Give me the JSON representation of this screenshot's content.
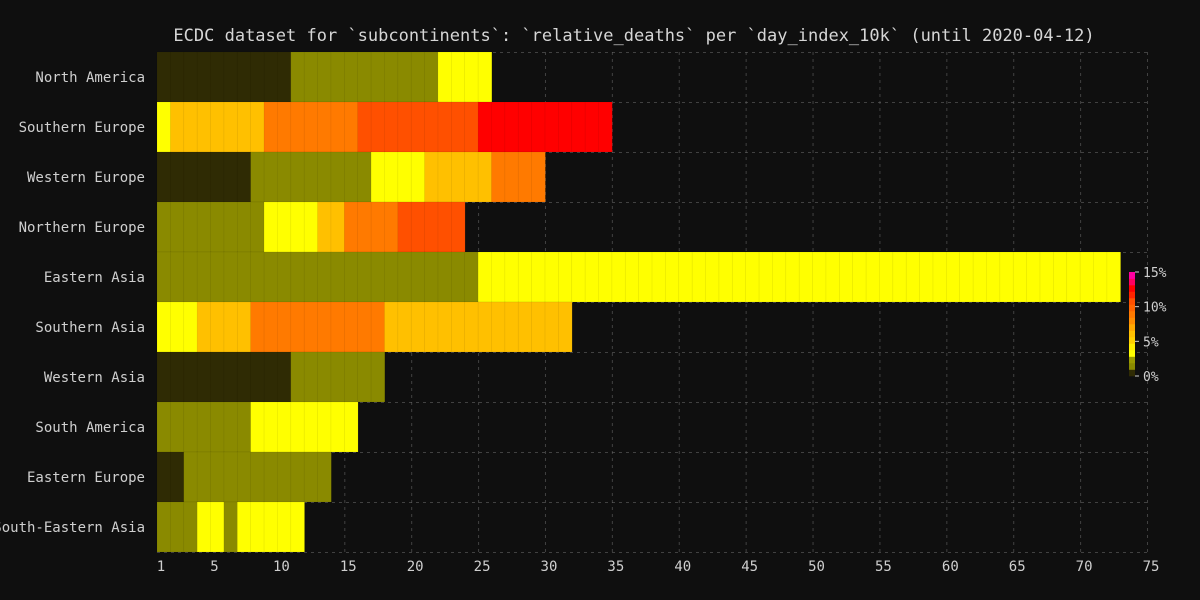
{
  "chart_data": {
    "type": "heatmap",
    "title": "ECDC dataset for `subcontinents`: `relative_deaths` per `day_index_10k` (until 2020-04-12)",
    "x_ticks": [
      1,
      5,
      10,
      15,
      20,
      25,
      30,
      35,
      40,
      45,
      50,
      55,
      60,
      65,
      70,
      75
    ],
    "x_range": [
      1,
      75
    ],
    "grid": true,
    "colorbar": {
      "labels": [
        "15%",
        "10%",
        "5%",
        "0%"
      ],
      "levels": [
        0,
        1,
        2,
        3,
        4,
        5,
        6,
        7,
        8,
        9,
        10,
        11,
        12,
        13,
        14,
        15
      ],
      "colors": [
        "#2f2b04",
        "#8a8a00",
        "#9a9a00",
        "#ffff00",
        "#ffee00",
        "#ffd000",
        "#ffc000",
        "#ffa800",
        "#ff8c00",
        "#ff7a00",
        "#ff6400",
        "#ff5000",
        "#ff2400",
        "#ff0000",
        "#ff0060",
        "#ff00a0"
      ]
    },
    "rows": [
      {
        "name": "North America",
        "segments": [
          {
            "start": 1,
            "end": 10,
            "level": 0
          },
          {
            "start": 11,
            "end": 21,
            "level": 1
          },
          {
            "start": 22,
            "end": 25,
            "level": 3
          }
        ]
      },
      {
        "name": "Southern Europe",
        "segments": [
          {
            "start": 1,
            "end": 1,
            "level": 3
          },
          {
            "start": 2,
            "end": 8,
            "level": 6
          },
          {
            "start": 9,
            "end": 15,
            "level": 9
          },
          {
            "start": 16,
            "end": 24,
            "level": 11
          },
          {
            "start": 25,
            "end": 34,
            "level": 13
          }
        ]
      },
      {
        "name": "Western Europe",
        "segments": [
          {
            "start": 1,
            "end": 7,
            "level": 0
          },
          {
            "start": 8,
            "end": 16,
            "level": 1
          },
          {
            "start": 17,
            "end": 20,
            "level": 3
          },
          {
            "start": 21,
            "end": 25,
            "level": 6
          },
          {
            "start": 26,
            "end": 29,
            "level": 9
          }
        ]
      },
      {
        "name": "Northern Europe",
        "segments": [
          {
            "start": 1,
            "end": 8,
            "level": 1
          },
          {
            "start": 9,
            "end": 12,
            "level": 3
          },
          {
            "start": 13,
            "end": 14,
            "level": 6
          },
          {
            "start": 15,
            "end": 18,
            "level": 9
          },
          {
            "start": 19,
            "end": 23,
            "level": 11
          }
        ]
      },
      {
        "name": "Eastern Asia",
        "segments": [
          {
            "start": 1,
            "end": 24,
            "level": 1
          },
          {
            "start": 25,
            "end": 72,
            "level": 3
          }
        ]
      },
      {
        "name": "Southern Asia",
        "segments": [
          {
            "start": 1,
            "end": 3,
            "level": 3
          },
          {
            "start": 4,
            "end": 7,
            "level": 6
          },
          {
            "start": 8,
            "end": 17,
            "level": 9
          },
          {
            "start": 18,
            "end": 31,
            "level": 6
          }
        ]
      },
      {
        "name": "Western Asia",
        "segments": [
          {
            "start": 1,
            "end": 10,
            "level": 0
          },
          {
            "start": 11,
            "end": 17,
            "level": 1
          }
        ]
      },
      {
        "name": "South America",
        "segments": [
          {
            "start": 1,
            "end": 7,
            "level": 1
          },
          {
            "start": 8,
            "end": 15,
            "level": 3
          }
        ]
      },
      {
        "name": "Eastern Europe",
        "segments": [
          {
            "start": 1,
            "end": 2,
            "level": 0
          },
          {
            "start": 3,
            "end": 13,
            "level": 1
          }
        ]
      },
      {
        "name": "South-Eastern Asia",
        "segments": [
          {
            "start": 1,
            "end": 3,
            "level": 1
          },
          {
            "start": 4,
            "end": 5,
            "level": 3
          },
          {
            "start": 6,
            "end": 6,
            "level": 1
          },
          {
            "start": 7,
            "end": 11,
            "level": 3
          }
        ]
      }
    ]
  }
}
